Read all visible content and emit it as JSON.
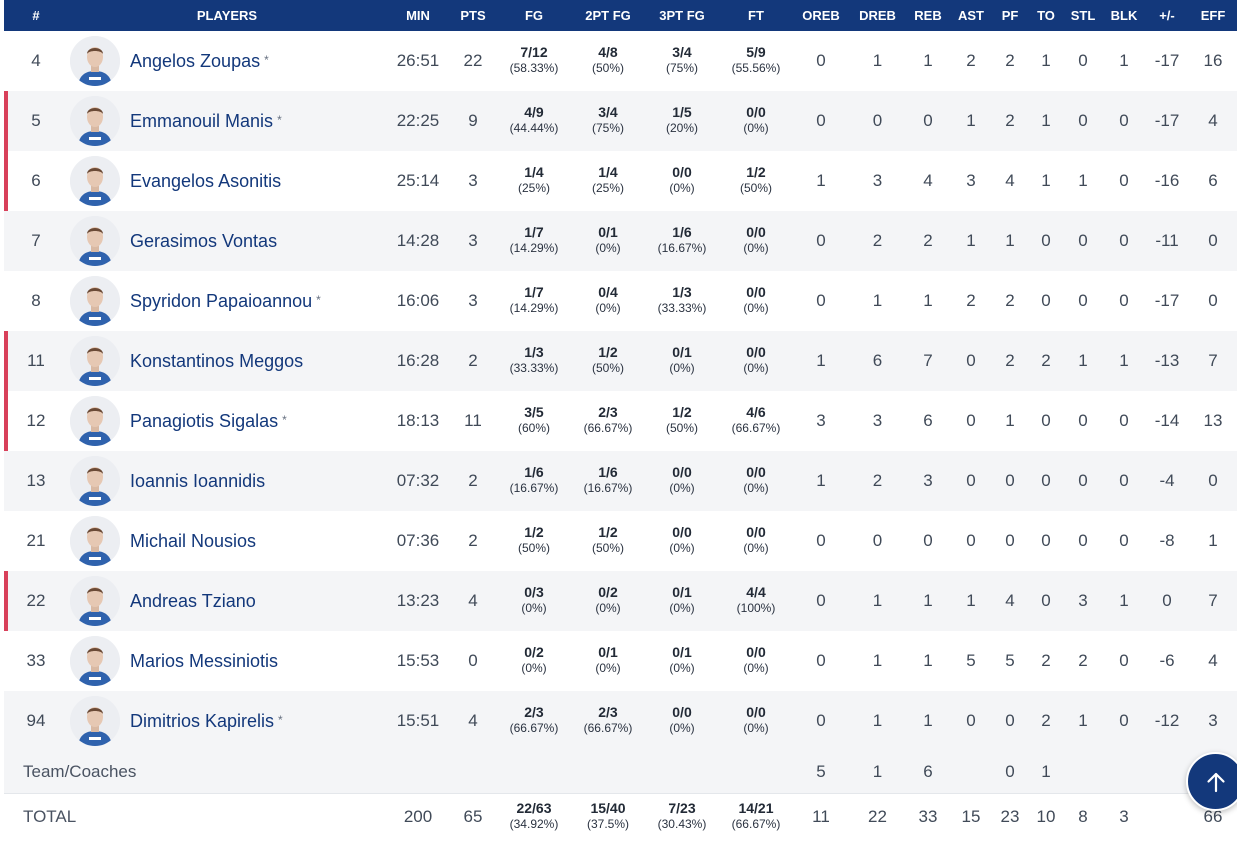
{
  "header": {
    "columns": [
      "#",
      "PLAYERS",
      "MIN",
      "PTS",
      "FG",
      "2PT FG",
      "3PT FG",
      "FT",
      "OREB",
      "DREB",
      "REB",
      "AST",
      "PF",
      "TO",
      "STL",
      "BLK",
      "+/-",
      "EFF"
    ]
  },
  "players": [
    {
      "num": "4",
      "name": "Angelos Zoupas",
      "star": "*",
      "starter": false,
      "min": "26:51",
      "pts": "22",
      "fg": "7/12",
      "fg_pct": "(58.33%)",
      "fg2": "4/8",
      "fg2_pct": "(50%)",
      "fg3": "3/4",
      "fg3_pct": "(75%)",
      "ft": "5/9",
      "ft_pct": "(55.56%)",
      "oreb": "0",
      "dreb": "1",
      "reb": "1",
      "ast": "2",
      "pf": "2",
      "to": "1",
      "stl": "0",
      "blk": "1",
      "pm": "-17",
      "eff": "16"
    },
    {
      "num": "5",
      "name": "Emmanouil Manis",
      "star": "*",
      "starter": true,
      "min": "22:25",
      "pts": "9",
      "fg": "4/9",
      "fg_pct": "(44.44%)",
      "fg2": "3/4",
      "fg2_pct": "(75%)",
      "fg3": "1/5",
      "fg3_pct": "(20%)",
      "ft": "0/0",
      "ft_pct": "(0%)",
      "oreb": "0",
      "dreb": "0",
      "reb": "0",
      "ast": "1",
      "pf": "2",
      "to": "1",
      "stl": "0",
      "blk": "0",
      "pm": "-17",
      "eff": "4"
    },
    {
      "num": "6",
      "name": "Evangelos Asonitis",
      "star": "",
      "starter": true,
      "min": "25:14",
      "pts": "3",
      "fg": "1/4",
      "fg_pct": "(25%)",
      "fg2": "1/4",
      "fg2_pct": "(25%)",
      "fg3": "0/0",
      "fg3_pct": "(0%)",
      "ft": "1/2",
      "ft_pct": "(50%)",
      "oreb": "1",
      "dreb": "3",
      "reb": "4",
      "ast": "3",
      "pf": "4",
      "to": "1",
      "stl": "1",
      "blk": "0",
      "pm": "-16",
      "eff": "6"
    },
    {
      "num": "7",
      "name": "Gerasimos Vontas",
      "star": "",
      "starter": false,
      "min": "14:28",
      "pts": "3",
      "fg": "1/7",
      "fg_pct": "(14.29%)",
      "fg2": "0/1",
      "fg2_pct": "(0%)",
      "fg3": "1/6",
      "fg3_pct": "(16.67%)",
      "ft": "0/0",
      "ft_pct": "(0%)",
      "oreb": "0",
      "dreb": "2",
      "reb": "2",
      "ast": "1",
      "pf": "1",
      "to": "0",
      "stl": "0",
      "blk": "0",
      "pm": "-11",
      "eff": "0"
    },
    {
      "num": "8",
      "name": "Spyridon Papaioannou",
      "star": "*",
      "starter": false,
      "min": "16:06",
      "pts": "3",
      "fg": "1/7",
      "fg_pct": "(14.29%)",
      "fg2": "0/4",
      "fg2_pct": "(0%)",
      "fg3": "1/3",
      "fg3_pct": "(33.33%)",
      "ft": "0/0",
      "ft_pct": "(0%)",
      "oreb": "0",
      "dreb": "1",
      "reb": "1",
      "ast": "2",
      "pf": "2",
      "to": "0",
      "stl": "0",
      "blk": "0",
      "pm": "-17",
      "eff": "0"
    },
    {
      "num": "11",
      "name": "Konstantinos Meggos",
      "star": "",
      "starter": true,
      "min": "16:28",
      "pts": "2",
      "fg": "1/3",
      "fg_pct": "(33.33%)",
      "fg2": "1/2",
      "fg2_pct": "(50%)",
      "fg3": "0/1",
      "fg3_pct": "(0%)",
      "ft": "0/0",
      "ft_pct": "(0%)",
      "oreb": "1",
      "dreb": "6",
      "reb": "7",
      "ast": "0",
      "pf": "2",
      "to": "2",
      "stl": "1",
      "blk": "1",
      "pm": "-13",
      "eff": "7"
    },
    {
      "num": "12",
      "name": "Panagiotis Sigalas",
      "star": "*",
      "starter": true,
      "min": "18:13",
      "pts": "11",
      "fg": "3/5",
      "fg_pct": "(60%)",
      "fg2": "2/3",
      "fg2_pct": "(66.67%)",
      "fg3": "1/2",
      "fg3_pct": "(50%)",
      "ft": "4/6",
      "ft_pct": "(66.67%)",
      "oreb": "3",
      "dreb": "3",
      "reb": "6",
      "ast": "0",
      "pf": "1",
      "to": "0",
      "stl": "0",
      "blk": "0",
      "pm": "-14",
      "eff": "13"
    },
    {
      "num": "13",
      "name": "Ioannis Ioannidis",
      "star": "",
      "starter": false,
      "min": "07:32",
      "pts": "2",
      "fg": "1/6",
      "fg_pct": "(16.67%)",
      "fg2": "1/6",
      "fg2_pct": "(16.67%)",
      "fg3": "0/0",
      "fg3_pct": "(0%)",
      "ft": "0/0",
      "ft_pct": "(0%)",
      "oreb": "1",
      "dreb": "2",
      "reb": "3",
      "ast": "0",
      "pf": "0",
      "to": "0",
      "stl": "0",
      "blk": "0",
      "pm": "-4",
      "eff": "0"
    },
    {
      "num": "21",
      "name": "Michail Nousios",
      "star": "",
      "starter": false,
      "min": "07:36",
      "pts": "2",
      "fg": "1/2",
      "fg_pct": "(50%)",
      "fg2": "1/2",
      "fg2_pct": "(50%)",
      "fg3": "0/0",
      "fg3_pct": "(0%)",
      "ft": "0/0",
      "ft_pct": "(0%)",
      "oreb": "0",
      "dreb": "0",
      "reb": "0",
      "ast": "0",
      "pf": "0",
      "to": "0",
      "stl": "0",
      "blk": "0",
      "pm": "-8",
      "eff": "1"
    },
    {
      "num": "22",
      "name": "Andreas Tziano",
      "star": "",
      "starter": true,
      "min": "13:23",
      "pts": "4",
      "fg": "0/3",
      "fg_pct": "(0%)",
      "fg2": "0/2",
      "fg2_pct": "(0%)",
      "fg3": "0/1",
      "fg3_pct": "(0%)",
      "ft": "4/4",
      "ft_pct": "(100%)",
      "oreb": "0",
      "dreb": "1",
      "reb": "1",
      "ast": "1",
      "pf": "4",
      "to": "0",
      "stl": "3",
      "blk": "1",
      "pm": "0",
      "eff": "7"
    },
    {
      "num": "33",
      "name": "Marios Messiniotis",
      "star": "",
      "starter": false,
      "min": "15:53",
      "pts": "0",
      "fg": "0/2",
      "fg_pct": "(0%)",
      "fg2": "0/1",
      "fg2_pct": "(0%)",
      "fg3": "0/1",
      "fg3_pct": "(0%)",
      "ft": "0/0",
      "ft_pct": "(0%)",
      "oreb": "0",
      "dreb": "1",
      "reb": "1",
      "ast": "5",
      "pf": "5",
      "to": "2",
      "stl": "2",
      "blk": "0",
      "pm": "-6",
      "eff": "4"
    },
    {
      "num": "94",
      "name": "Dimitrios Kapirelis",
      "star": "*",
      "starter": false,
      "min": "15:51",
      "pts": "4",
      "fg": "2/3",
      "fg_pct": "(66.67%)",
      "fg2": "2/3",
      "fg2_pct": "(66.67%)",
      "fg3": "0/0",
      "fg3_pct": "(0%)",
      "ft": "0/0",
      "ft_pct": "(0%)",
      "oreb": "0",
      "dreb": "1",
      "reb": "1",
      "ast": "0",
      "pf": "0",
      "to": "2",
      "stl": "1",
      "blk": "0",
      "pm": "-12",
      "eff": "3"
    }
  ],
  "team_row": {
    "label": "Team/Coaches",
    "oreb": "5",
    "dreb": "1",
    "reb": "6",
    "pf": "0",
    "to": "1"
  },
  "total_row": {
    "label": "TOTAL",
    "min": "200",
    "pts": "65",
    "fg": "22/63",
    "fg_pct": "(34.92%)",
    "fg2": "15/40",
    "fg2_pct": "(37.5%)",
    "fg3": "7/23",
    "fg3_pct": "(30.43%)",
    "ft": "14/21",
    "ft_pct": "(66.67%)",
    "oreb": "11",
    "dreb": "22",
    "reb": "33",
    "ast": "15",
    "pf": "23",
    "to": "10",
    "stl": "8",
    "blk": "3",
    "eff": "66"
  },
  "colors": {
    "header_bg": "#13387b",
    "player_name": "#13387b",
    "starter_marker": "#d8405a",
    "row_alt": "#f4f5f7"
  },
  "icons": {
    "scroll_top": "arrow-up-icon",
    "avatar": "player-avatar"
  }
}
